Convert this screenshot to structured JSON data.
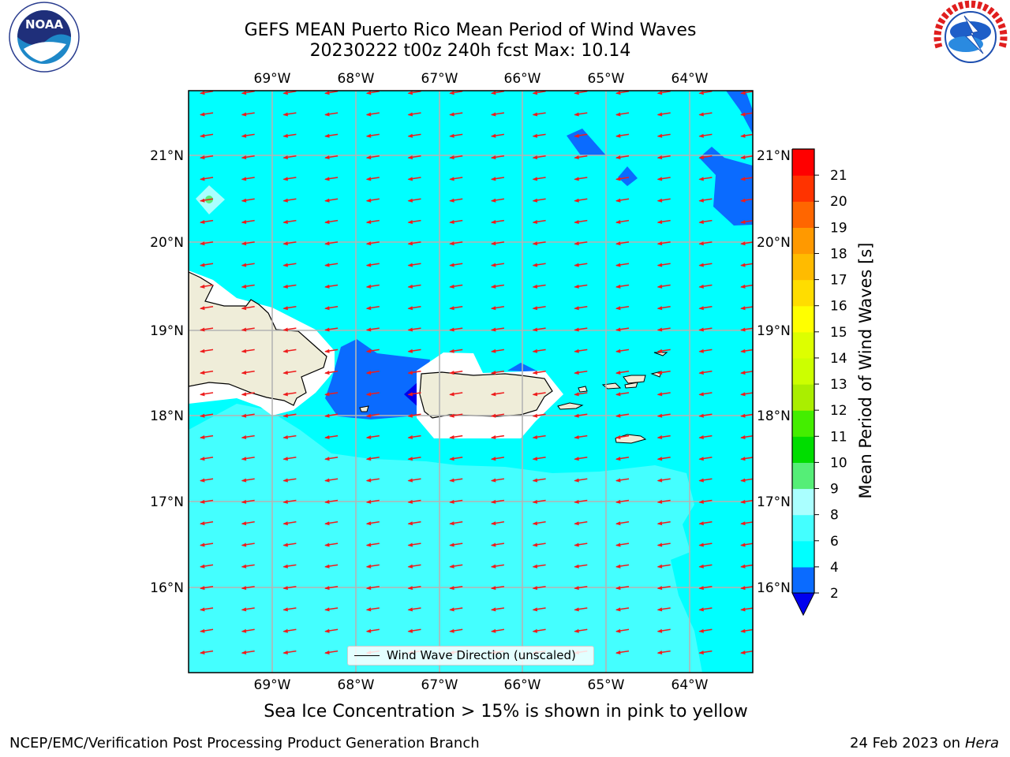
{
  "title": {
    "line1": "GEFS MEAN Puerto Rico Mean Period of Wind Waves",
    "line2": "20230222 t00z 240h fcst   Max: 10.14"
  },
  "logos": {
    "left": {
      "name": "noaa-logo",
      "text": "NOAA"
    },
    "right": {
      "name": "national-weather-service-logo",
      "text": "NATIONAL WEATHER SERVICE"
    }
  },
  "map": {
    "lon_labels": [
      "69°W",
      "68°W",
      "67°W",
      "66°W",
      "65°W",
      "64°W"
    ],
    "lat_labels": [
      "21°N",
      "20°N",
      "19°N",
      "18°N",
      "17°N",
      "16°N"
    ],
    "legend_label": "Wind Wave Direction (unscaled)",
    "land_color": "#efedd9",
    "arrow_color": "#ee1c1c",
    "fill_colors": {
      "2-4": "#0a6bff",
      "4-6": "#00ffff",
      "6-8": "#44ffff",
      "below-2": "#0000ee",
      "8-9": "#aaffff",
      "9-10": "#55ee77"
    }
  },
  "colorbar": {
    "title": "Mean Period of Wind Waves [s]",
    "tick_labels": [
      "2",
      "4",
      "6",
      "8",
      "9",
      "10",
      "11",
      "12",
      "13",
      "14",
      "15",
      "16",
      "17",
      "18",
      "19",
      "20",
      "21"
    ],
    "colors": [
      "#0a6bff",
      "#00ffff",
      "#44ffff",
      "#aaffff",
      "#55ee77",
      "#00dd00",
      "#44ee00",
      "#aaee00",
      "#ccff00",
      "#ddff00",
      "#ffff00",
      "#ffdd00",
      "#ffbb00",
      "#ff9900",
      "#ff6600",
      "#ff3300",
      "#ff0000"
    ],
    "extend_color": "#0000ee"
  },
  "ice_note": "Sea Ice Concentration > 15% is shown in pink to yellow",
  "footer": {
    "left": "NCEP/EMC/Verification Post Processing Product Generation Branch",
    "date": "24 Feb 2023 on",
    "host": "Hera"
  }
}
